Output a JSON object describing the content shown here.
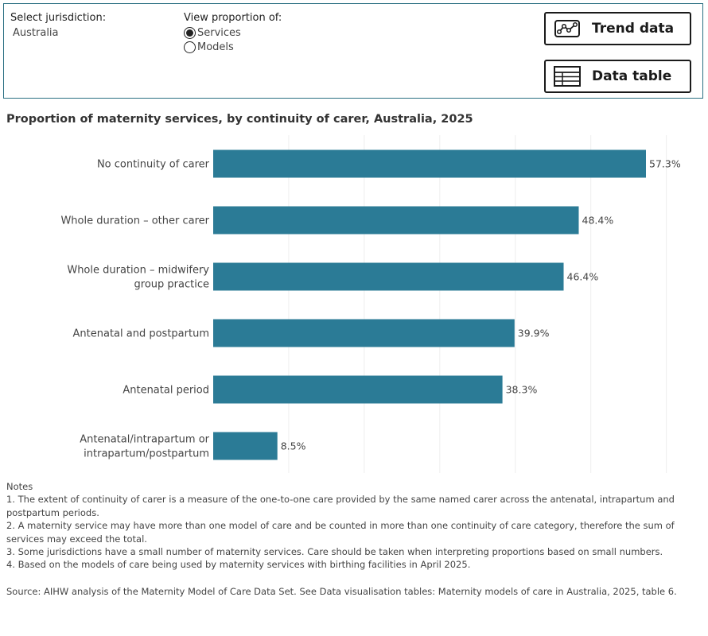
{
  "filters": {
    "jurisdiction_label": "Select jurisdiction:",
    "jurisdiction_value": "Australia",
    "view_label": "View proportion of:",
    "view_options": [
      "Services",
      "Models"
    ],
    "view_selected": "Services"
  },
  "buttons": {
    "trend": "Trend data",
    "table": "Data table"
  },
  "chart_data": {
    "type": "bar",
    "orientation": "horizontal",
    "title": "Proportion of maternity services, by continuity of carer, Australia, 2025",
    "categories": [
      "No continuity of carer",
      "Whole duration – other carer",
      "Whole duration – midwifery group practice",
      "Antenatal and postpartum",
      "Antenatal period",
      "Antenatal/intrapartum or intrapartum/postpartum"
    ],
    "values": [
      57.3,
      48.4,
      46.4,
      39.9,
      38.3,
      8.5
    ],
    "value_labels": [
      "57.3%",
      "48.4%",
      "46.4%",
      "39.9%",
      "38.3%",
      "8.5%"
    ],
    "xlim": [
      0,
      60
    ],
    "grid": true,
    "bar_color": "#2b7b96"
  },
  "notes": {
    "heading": "Notes",
    "items": [
      "1. The extent of continuity of carer is a measure of the one-to-one care provided by the same named carer across the antenatal, intrapartum and postpartum periods.",
      "2. A maternity service may have more than one model of care and be counted in more than one continuity of care category, therefore the sum of services may exceed the total.",
      "3. Some jurisdictions have a small number of maternity services. Care should be taken when interpreting proportions based on small numbers.",
      "4. Based on the models of care being used by maternity services with birthing facilities in April 2025."
    ]
  },
  "source": "Source: AIHW analysis of the Maternity Model of Care Data Set. See Data visualisation tables: Maternity models of care in Australia, 2025, table 6."
}
